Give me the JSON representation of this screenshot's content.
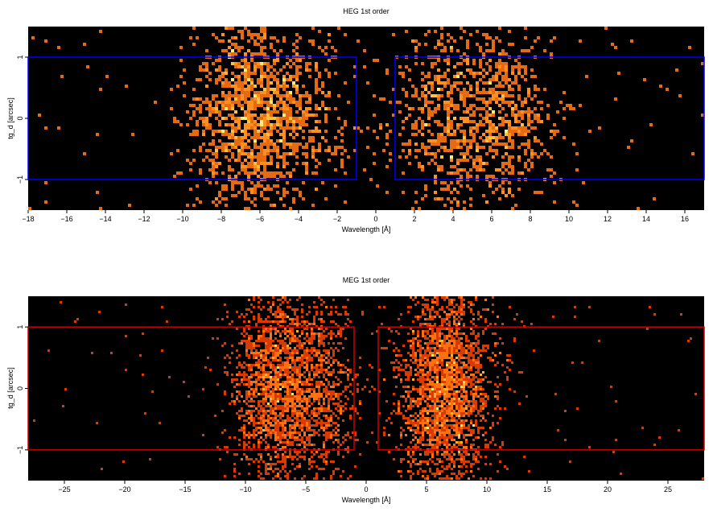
{
  "chart_data": [
    {
      "type": "heatmap",
      "title": "HEG 1st order",
      "xlabel": "Wavelength [Å]",
      "ylabel": "tg_d [arcsec]",
      "xlim": [
        -18,
        17
      ],
      "ylim": [
        -1.5,
        1.5
      ],
      "xticks": [
        "−18",
        "−16",
        "−14",
        "−12",
        "−10",
        "−8",
        "−6",
        "−4",
        "−2",
        "0",
        "2",
        "4",
        "6",
        "8",
        "10",
        "12",
        "14",
        "16"
      ],
      "yticks": [
        "−1",
        "0",
        "1"
      ],
      "grid": false,
      "background_color": "#000000",
      "region_color": "#0000ff",
      "extraction_regions": [
        {
          "x": [
            -18,
            -1
          ],
          "y": [
            -1,
            1
          ]
        },
        {
          "x": [
            1,
            17
          ],
          "y": [
            -1,
            1
          ]
        }
      ],
      "density_peaks": [
        {
          "x": -7.0,
          "weight": 1.0
        },
        {
          "x": -6.2,
          "weight": 0.8
        },
        {
          "x": -4.0,
          "weight": 0.6
        },
        {
          "x": 3.5,
          "weight": 0.8
        },
        {
          "x": 6.5,
          "weight": 1.0
        }
      ]
    },
    {
      "type": "heatmap",
      "title": "MEG 1st order",
      "xlabel": "Wavelength [Å]",
      "ylabel": "tg_d [arcsec]",
      "xlim": [
        -28,
        28
      ],
      "ylim": [
        -1.5,
        1.5
      ],
      "xticks": [
        "−25",
        "−20",
        "−15",
        "−10",
        "−5",
        "0",
        "5",
        "10",
        "15",
        "20",
        "25"
      ],
      "yticks": [
        "−1",
        "0",
        "1"
      ],
      "grid": false,
      "background_color": "#000000",
      "region_color": "#cc0000",
      "extraction_regions": [
        {
          "x": [
            -28,
            -1
          ],
          "y": [
            -1,
            1
          ]
        },
        {
          "x": [
            1,
            28
          ],
          "y": [
            -1,
            1
          ]
        }
      ],
      "density_peaks": [
        {
          "x": -8.5,
          "weight": 0.8
        },
        {
          "x": -6.5,
          "weight": 1.0
        },
        {
          "x": -3.5,
          "weight": 0.6
        },
        {
          "x": 5.0,
          "weight": 0.7
        },
        {
          "x": 6.5,
          "weight": 1.0
        },
        {
          "x": 8.0,
          "weight": 0.7
        }
      ]
    }
  ]
}
